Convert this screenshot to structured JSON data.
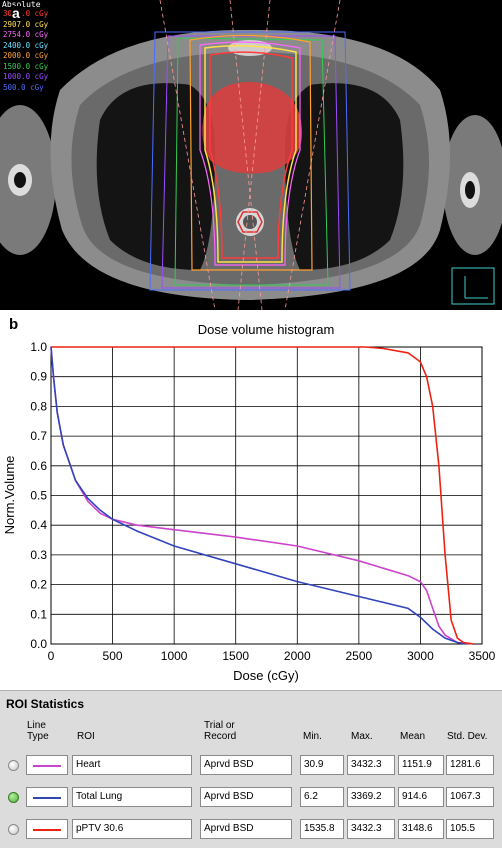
{
  "ct_panel": {
    "label": "a",
    "header": "Absolute",
    "isodose_legend": [
      {
        "text": "3060.0 cGy",
        "color": "#ff3b3b"
      },
      {
        "text": "2907.0 cGy",
        "color": "#ffe04a"
      },
      {
        "text": "2754.0 cGy",
        "color": "#ff66ff"
      },
      {
        "text": "2400.0 cGy",
        "color": "#66e0ff"
      },
      {
        "text": "2000.0 cGy",
        "color": "#ffa030"
      },
      {
        "text": "1500.0 cGy",
        "color": "#33cc55"
      },
      {
        "text": "1000.0 cGy",
        "color": "#9a4dff"
      },
      {
        "text": "500.0 cGy",
        "color": "#4d6dff"
      }
    ]
  },
  "chart_panel": {
    "label": "b"
  },
  "chart_data": {
    "type": "line",
    "title": "Dose volume histogram",
    "xlabel": "Dose (cGy)",
    "ylabel": "Norm.Volume",
    "xlim": [
      0,
      3500
    ],
    "ylim": [
      0,
      1.0
    ],
    "x_ticks": [
      "0",
      "500",
      "1000",
      "1500",
      "2000",
      "2500",
      "3000",
      "3500"
    ],
    "y_ticks": [
      "0.0",
      "0.1",
      "0.2",
      "0.3",
      "0.4",
      "0.5",
      "0.6",
      "0.7",
      "0.8",
      "0.9",
      "1.0"
    ],
    "grid": true,
    "series": [
      {
        "name": "Heart",
        "color": "#cc44cc",
        "x": [
          0,
          20,
          50,
          100,
          200,
          300,
          400,
          500,
          700,
          1000,
          1500,
          2000,
          2500,
          2900,
          3000,
          3050,
          3100,
          3150,
          3200,
          3300,
          3432
        ],
        "y": [
          1.0,
          0.9,
          0.78,
          0.67,
          0.55,
          0.48,
          0.44,
          0.42,
          0.4,
          0.385,
          0.36,
          0.33,
          0.28,
          0.23,
          0.21,
          0.18,
          0.12,
          0.06,
          0.03,
          0.005,
          0.0
        ]
      },
      {
        "name": "Total Lung",
        "color": "#3344bb",
        "x": [
          0,
          20,
          50,
          100,
          200,
          300,
          400,
          500,
          700,
          1000,
          1500,
          2000,
          2500,
          2900,
          3000,
          3100,
          3200,
          3300,
          3369
        ],
        "y": [
          1.0,
          0.9,
          0.78,
          0.67,
          0.55,
          0.49,
          0.45,
          0.42,
          0.38,
          0.33,
          0.27,
          0.21,
          0.16,
          0.12,
          0.09,
          0.05,
          0.02,
          0.005,
          0.0
        ]
      },
      {
        "name": "pPTV 30.6",
        "color": "#ee2211",
        "x": [
          0,
          1536,
          2550,
          2700,
          2900,
          3000,
          3050,
          3100,
          3150,
          3200,
          3250,
          3300,
          3350,
          3432
        ],
        "y": [
          1.0,
          1.0,
          1.0,
          0.995,
          0.98,
          0.95,
          0.9,
          0.8,
          0.6,
          0.3,
          0.08,
          0.02,
          0.005,
          0.0
        ]
      }
    ]
  },
  "roi_stats": {
    "title": "ROI Statistics",
    "headers": {
      "line_type": "Line\nType",
      "roi": "ROI",
      "trial": "Trial or\nRecord",
      "min": "Min.",
      "max": "Max.",
      "mean": "Mean",
      "std": "Std. Dev."
    },
    "rows": [
      {
        "roi": "Heart",
        "trial": "Aprvd BSD",
        "min": "30.9",
        "max": "3432.3",
        "mean": "1151.9",
        "std": "1281.6",
        "color": "#cc44cc",
        "selected": false
      },
      {
        "roi": "Total Lung",
        "trial": "Aprvd BSD",
        "min": "6.2",
        "max": "3369.2",
        "mean": "914.6",
        "std": "1067.3",
        "color": "#3344bb",
        "selected": true
      },
      {
        "roi": "pPTV 30.6",
        "trial": "Aprvd BSD",
        "min": "1535.8",
        "max": "3432.3",
        "mean": "3148.6",
        "std": "105.5",
        "color": "#ee2211",
        "selected": false
      }
    ]
  }
}
